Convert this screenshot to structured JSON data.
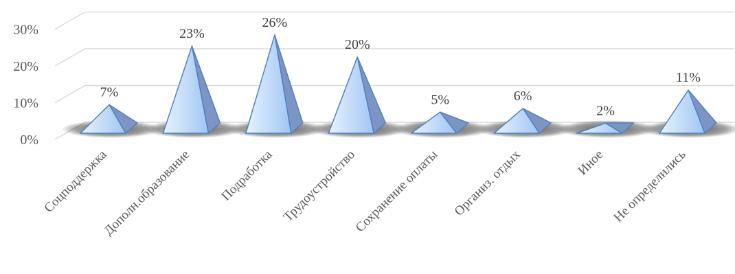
{
  "chart_data": {
    "type": "bar",
    "style": "3d-pyramid",
    "title": "",
    "xlabel": "",
    "ylabel": "",
    "ylim": [
      0,
      30
    ],
    "yticks": [
      "0%",
      "10%",
      "20%",
      "30%"
    ],
    "grid": true,
    "legend": "none",
    "categories": [
      "Соцподдержка",
      "Дополн.образование",
      "Подработка",
      "Трудоустройство",
      "Сохранение оплаты",
      "Организ. отдых",
      "Иное",
      "Не определились"
    ],
    "values": [
      7,
      23,
      26,
      20,
      5,
      6,
      2,
      11
    ],
    "data_labels": [
      "7%",
      "23%",
      "26%",
      "20%",
      "5%",
      "6%",
      "2%",
      "11%"
    ],
    "colors": {
      "front_light": "#e8f3ff",
      "front_dark": "#9fc5f2",
      "side": "#7d95c4",
      "edge": "#4f81bd",
      "shadow": "#3f3f3f",
      "grid": "#d9d9d9"
    }
  }
}
